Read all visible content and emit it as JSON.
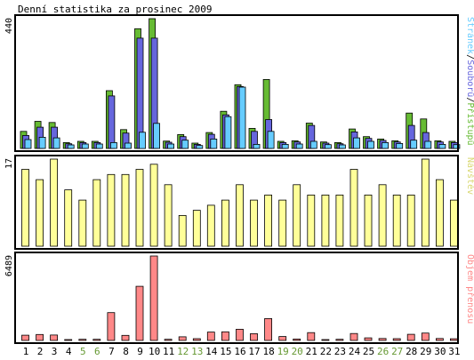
{
  "chart_data": [
    {
      "type": "bar",
      "title": "Denní statistika za prosinec 2009",
      "ymax_label": "440",
      "legend_labels": [
        {
          "text": "Stránek",
          "color": "#66ccff"
        },
        {
          "text": "Souborů",
          "color": "#6666dd"
        },
        {
          "text": "Přístupů",
          "color": "#66bb33"
        }
      ],
      "categories": [
        "1",
        "2",
        "3",
        "4",
        "5",
        "6",
        "7",
        "8",
        "9",
        "10",
        "11",
        "12",
        "13",
        "14",
        "15",
        "16",
        "17",
        "18",
        "19",
        "20",
        "21",
        "22",
        "23",
        "24",
        "25",
        "26",
        "27",
        "28",
        "29",
        "30",
        "31"
      ],
      "series": [
        {
          "name": "Přístupů",
          "color": "#66bb33",
          "values": [
            58,
            92,
            88,
            20,
            24,
            24,
            196,
            64,
            406,
            440,
            25,
            47,
            18,
            54,
            126,
            216,
            68,
            234,
            24,
            26,
            86,
            22,
            20,
            66,
            40,
            32,
            26,
            120,
            100,
            26,
            24
          ]
        },
        {
          "name": "Souborů",
          "color": "#6666dd",
          "values": [
            44,
            72,
            72,
            16,
            20,
            20,
            178,
            52,
            374,
            374,
            21,
            40,
            14,
            48,
            114,
            210,
            58,
            98,
            20,
            22,
            78,
            18,
            16,
            56,
            34,
            27,
            22,
            78,
            54,
            22,
            20
          ]
        },
        {
          "name": "Stránek",
          "color": "#66ccff",
          "values": [
            30,
            38,
            36,
            12,
            15,
            15,
            20,
            18,
            55,
            85,
            15,
            28,
            10,
            32,
            108,
            208,
            14,
            58,
            14,
            15,
            24,
            13,
            12,
            36,
            24,
            20,
            17,
            28,
            24,
            14,
            13
          ]
        }
      ],
      "ylim": [
        0,
        440
      ]
    },
    {
      "type": "bar",
      "ymax_label": "17",
      "legend_labels": [
        {
          "text": "Návštěv",
          "color": "#d8d870"
        }
      ],
      "categories": [
        "1",
        "2",
        "3",
        "4",
        "5",
        "6",
        "7",
        "8",
        "9",
        "10",
        "11",
        "12",
        "13",
        "14",
        "15",
        "16",
        "17",
        "18",
        "19",
        "20",
        "21",
        "22",
        "23",
        "24",
        "25",
        "26",
        "27",
        "28",
        "29",
        "30",
        "31"
      ],
      "series": [
        {
          "name": "Návštěv",
          "color": "#ffff99",
          "values": [
            15,
            13,
            17,
            11,
            9,
            13,
            14,
            14,
            15,
            16,
            12,
            6,
            7,
            8,
            9,
            12,
            9,
            10,
            9,
            12,
            10,
            10,
            10,
            15,
            10,
            12,
            10,
            10,
            17,
            13,
            9
          ]
        }
      ],
      "ylim": [
        0,
        17
      ]
    },
    {
      "type": "bar",
      "ymax_label": "6489",
      "legend_labels": [
        {
          "text": "Objem přenosu",
          "color": "#ff8888"
        }
      ],
      "categories": [
        "1",
        "2",
        "3",
        "4",
        "5",
        "6",
        "7",
        "8",
        "9",
        "10",
        "11",
        "12",
        "13",
        "14",
        "15",
        "16",
        "17",
        "18",
        "19",
        "20",
        "21",
        "22",
        "23",
        "24",
        "25",
        "26",
        "27",
        "28",
        "29",
        "30",
        "31"
      ],
      "series": [
        {
          "name": "Objem přenosu",
          "color": "#ff8888",
          "values": [
            400,
            460,
            420,
            70,
            90,
            90,
            2140,
            390,
            4160,
            6489,
            90,
            280,
            140,
            640,
            660,
            860,
            520,
            1680,
            300,
            110,
            600,
            70,
            90,
            530,
            200,
            150,
            140,
            470,
            570,
            150,
            130
          ]
        }
      ],
      "ylim": [
        0,
        6489
      ]
    }
  ],
  "x_labels": [
    {
      "text": "1",
      "color": "#000000"
    },
    {
      "text": "2",
      "color": "#000000"
    },
    {
      "text": "3",
      "color": "#000000"
    },
    {
      "text": "4",
      "color": "#000000"
    },
    {
      "text": "5",
      "color": "#669933"
    },
    {
      "text": "6",
      "color": "#669933"
    },
    {
      "text": "7",
      "color": "#000000"
    },
    {
      "text": "8",
      "color": "#000000"
    },
    {
      "text": "9",
      "color": "#000000"
    },
    {
      "text": "10",
      "color": "#000000"
    },
    {
      "text": "11",
      "color": "#000000"
    },
    {
      "text": "12",
      "color": "#669933"
    },
    {
      "text": "13",
      "color": "#669933"
    },
    {
      "text": "14",
      "color": "#000000"
    },
    {
      "text": "15",
      "color": "#000000"
    },
    {
      "text": "16",
      "color": "#000000"
    },
    {
      "text": "17",
      "color": "#000000"
    },
    {
      "text": "18",
      "color": "#000000"
    },
    {
      "text": "19",
      "color": "#669933"
    },
    {
      "text": "20",
      "color": "#669933"
    },
    {
      "text": "21",
      "color": "#000000"
    },
    {
      "text": "22",
      "color": "#000000"
    },
    {
      "text": "23",
      "color": "#000000"
    },
    {
      "text": "24",
      "color": "#000000"
    },
    {
      "text": "25",
      "color": "#000000"
    },
    {
      "text": "26",
      "color": "#669933"
    },
    {
      "text": "27",
      "color": "#669933"
    },
    {
      "text": "28",
      "color": "#000000"
    },
    {
      "text": "29",
      "color": "#000000"
    },
    {
      "text": "30",
      "color": "#000000"
    },
    {
      "text": "31",
      "color": "#000000"
    }
  ],
  "separator": "/",
  "colors": {
    "frame": "#000000",
    "background": "#ffffff",
    "text": "#000000"
  }
}
